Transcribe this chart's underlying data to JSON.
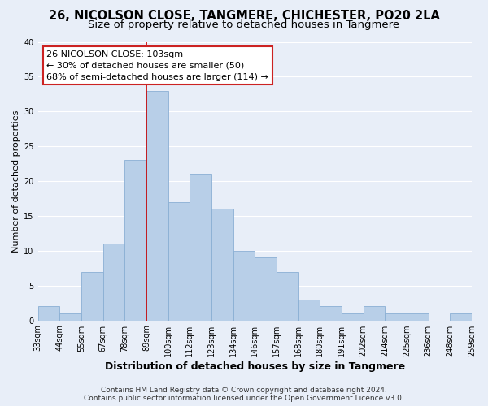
{
  "title": "26, NICOLSON CLOSE, TANGMERE, CHICHESTER, PO20 2LA",
  "subtitle": "Size of property relative to detached houses in Tangmere",
  "xlabel": "Distribution of detached houses by size in Tangmere",
  "ylabel": "Number of detached properties",
  "bar_labels": [
    "33sqm",
    "44sqm",
    "55sqm",
    "67sqm",
    "78sqm",
    "89sqm",
    "100sqm",
    "112sqm",
    "123sqm",
    "134sqm",
    "146sqm",
    "157sqm",
    "168sqm",
    "180sqm",
    "191sqm",
    "202sqm",
    "214sqm",
    "225sqm",
    "236sqm",
    "248sqm",
    "259sqm"
  ],
  "bar_values": [
    2,
    1,
    7,
    11,
    23,
    33,
    17,
    21,
    16,
    10,
    9,
    7,
    3,
    2,
    1,
    2,
    1,
    1,
    0,
    1
  ],
  "bar_color": "#b8cfe8",
  "bar_edge_color": "#8aafd4",
  "vline_x_index": 5,
  "vline_color": "#cc0000",
  "ylim": [
    0,
    40
  ],
  "yticks": [
    0,
    5,
    10,
    15,
    20,
    25,
    30,
    35,
    40
  ],
  "annotation_title": "26 NICOLSON CLOSE: 103sqm",
  "annotation_line1": "← 30% of detached houses are smaller (50)",
  "annotation_line2": "68% of semi-detached houses are larger (114) →",
  "footer1": "Contains HM Land Registry data © Crown copyright and database right 2024.",
  "footer2": "Contains public sector information licensed under the Open Government Licence v3.0.",
  "background_color": "#e8eef8",
  "grid_color": "#ffffff",
  "title_fontsize": 10.5,
  "subtitle_fontsize": 9.5,
  "xlabel_fontsize": 9,
  "ylabel_fontsize": 8,
  "tick_fontsize": 7,
  "annotation_fontsize": 8,
  "footer_fontsize": 6.5
}
